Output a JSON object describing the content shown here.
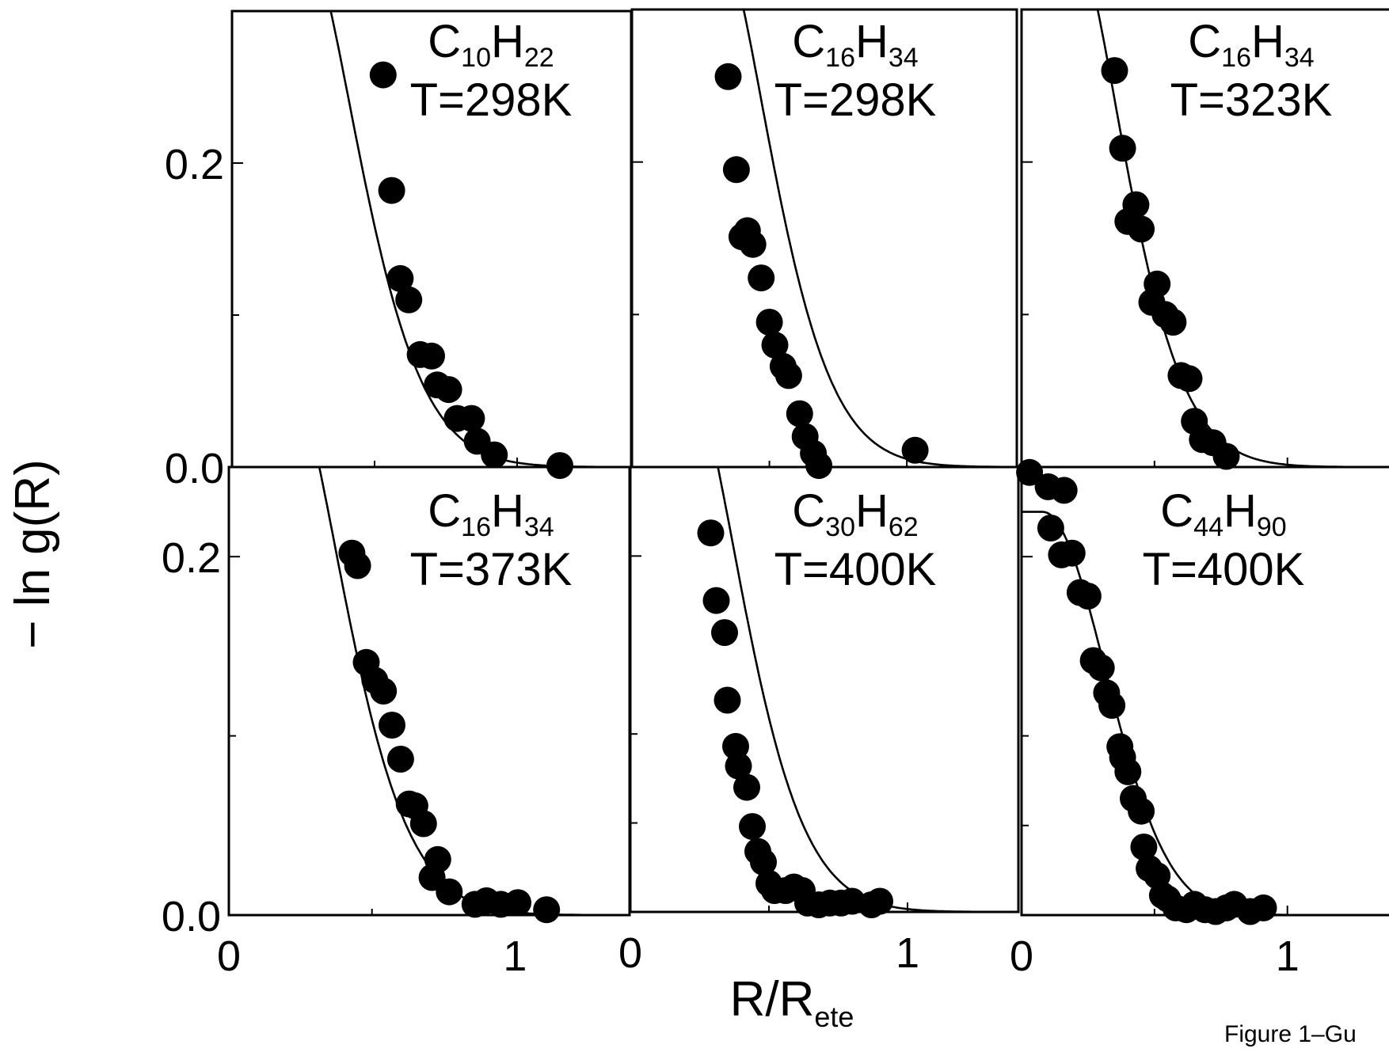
{
  "figure": {
    "ylabel": "− ln g(R)",
    "xlabel_main": "R/R",
    "xlabel_sub": "ete",
    "caption": "Figure 1–Gu"
  },
  "chart_data": [
    {
      "type": "scatter",
      "label": {
        "c": "C",
        "c_sub": "10",
        "h": "H",
        "h_sub": "22",
        "temp": "T=298K"
      },
      "xlim": [
        0,
        1.4
      ],
      "ylim": [
        0,
        0.3
      ],
      "yticks": [
        0.0,
        0.2
      ],
      "ytick_labels": [
        "0.0",
        "0.2"
      ],
      "y_minor": [
        0.1
      ],
      "xticks": [
        0,
        1
      ],
      "xtick_labels": [
        "",
        ""
      ],
      "x_minor": [
        0.5
      ],
      "curve": {
        "x0": 0.26,
        "k": 5.0
      },
      "points": [
        [
          0.53,
          0.258
        ],
        [
          0.56,
          0.182
        ],
        [
          0.59,
          0.124
        ],
        [
          0.62,
          0.11
        ],
        [
          0.66,
          0.074
        ],
        [
          0.7,
          0.073
        ],
        [
          0.72,
          0.054
        ],
        [
          0.76,
          0.051
        ],
        [
          0.79,
          0.032
        ],
        [
          0.84,
          0.032
        ],
        [
          0.86,
          0.017
        ],
        [
          0.92,
          0.008
        ],
        [
          1.15,
          0.001
        ]
      ]
    },
    {
      "type": "scatter",
      "label": {
        "c": "C",
        "c_sub": "16",
        "h": "H",
        "h_sub": "34",
        "temp": "T=298K"
      },
      "xlim": [
        0,
        1.4
      ],
      "ylim": [
        0,
        0.3
      ],
      "yticks": [
        0.2
      ],
      "ytick_labels": [
        ""
      ],
      "y_minor": [
        0.1
      ],
      "xticks": [
        0,
        1
      ],
      "xtick_labels": [
        "",
        ""
      ],
      "x_minor": [
        0.5
      ],
      "curve": {
        "x0": 0.32,
        "k": 5.0
      },
      "points": [
        [
          0.35,
          0.256
        ],
        [
          0.38,
          0.195
        ],
        [
          0.4,
          0.151
        ],
        [
          0.42,
          0.155
        ],
        [
          0.44,
          0.146
        ],
        [
          0.47,
          0.124
        ],
        [
          0.5,
          0.095
        ],
        [
          0.52,
          0.08
        ],
        [
          0.55,
          0.066
        ],
        [
          0.57,
          0.06
        ],
        [
          0.61,
          0.035
        ],
        [
          0.63,
          0.02
        ],
        [
          0.66,
          0.009
        ],
        [
          0.68,
          0.001
        ],
        [
          1.03,
          0.011
        ]
      ]
    },
    {
      "type": "scatter",
      "label": {
        "c": "C",
        "c_sub": "16",
        "h": "H",
        "h_sub": "34",
        "temp": "T=323K"
      },
      "xlim": [
        0,
        1.4
      ],
      "ylim": [
        0,
        0.3
      ],
      "yticks": [
        0.2
      ],
      "ytick_labels": [
        ""
      ],
      "y_minor": [
        0.1
      ],
      "xticks": [
        0,
        1
      ],
      "xtick_labels": [
        "",
        ""
      ],
      "x_minor": [
        0.5
      ],
      "curve": {
        "x0": 0.2,
        "k": 5.0
      },
      "points": [
        [
          0.35,
          0.26
        ],
        [
          0.38,
          0.209
        ],
        [
          0.4,
          0.161
        ],
        [
          0.43,
          0.172
        ],
        [
          0.45,
          0.156
        ],
        [
          0.49,
          0.108
        ],
        [
          0.51,
          0.12
        ],
        [
          0.54,
          0.1
        ],
        [
          0.57,
          0.095
        ],
        [
          0.6,
          0.06
        ],
        [
          0.63,
          0.058
        ],
        [
          0.65,
          0.03
        ],
        [
          0.68,
          0.018
        ],
        [
          0.72,
          0.016
        ],
        [
          0.77,
          0.007
        ]
      ]
    },
    {
      "type": "scatter",
      "label": {
        "c": "C",
        "c_sub": "16",
        "h": "H",
        "h_sub": "34",
        "temp": "T=373K"
      },
      "xlim": [
        0,
        1.4
      ],
      "ylim": [
        0,
        0.25
      ],
      "yticks": [
        0.0,
        0.2
      ],
      "ytick_labels": [
        "0.0",
        "0.2"
      ],
      "y_minor": [
        0.1
      ],
      "xticks": [
        0,
        1
      ],
      "xtick_labels": [
        "0",
        "1"
      ],
      "x_minor": [
        0.5
      ],
      "curve": {
        "x0": 0.22,
        "k": 5.0
      },
      "points": [
        [
          0.43,
          0.202
        ],
        [
          0.45,
          0.195
        ],
        [
          0.48,
          0.141
        ],
        [
          0.51,
          0.131
        ],
        [
          0.54,
          0.125
        ],
        [
          0.57,
          0.106
        ],
        [
          0.6,
          0.087
        ],
        [
          0.63,
          0.062
        ],
        [
          0.65,
          0.061
        ],
        [
          0.68,
          0.051
        ],
        [
          0.73,
          0.031
        ],
        [
          0.71,
          0.021
        ],
        [
          0.77,
          0.013
        ],
        [
          0.86,
          0.006
        ],
        [
          0.9,
          0.008
        ],
        [
          0.95,
          0.006
        ],
        [
          1.01,
          0.007
        ],
        [
          1.11,
          0.003
        ]
      ]
    },
    {
      "type": "scatter",
      "label": {
        "c": "C",
        "c_sub": "30",
        "h": "H",
        "h_sub": "62",
        "temp": "T=400K"
      },
      "xlim": [
        0,
        1.4
      ],
      "ylim": [
        0,
        0.25
      ],
      "yticks": [
        0.2
      ],
      "ytick_labels": [
        ""
      ],
      "y_minor": [
        0.1,
        0.05
      ],
      "xticks": [
        0,
        1
      ],
      "xtick_labels": [
        "0",
        "1"
      ],
      "x_minor": [
        0.5
      ],
      "curve": {
        "x0": 0.22,
        "k": 5.0
      },
      "points": [
        [
          0.29,
          0.213
        ],
        [
          0.31,
          0.175
        ],
        [
          0.34,
          0.157
        ],
        [
          0.35,
          0.119
        ],
        [
          0.38,
          0.093
        ],
        [
          0.39,
          0.082
        ],
        [
          0.42,
          0.07
        ],
        [
          0.44,
          0.048
        ],
        [
          0.46,
          0.034
        ],
        [
          0.48,
          0.028
        ],
        [
          0.5,
          0.016
        ],
        [
          0.52,
          0.012
        ],
        [
          0.56,
          0.012
        ],
        [
          0.59,
          0.014
        ],
        [
          0.62,
          0.012
        ],
        [
          0.64,
          0.005
        ],
        [
          0.68,
          0.004
        ],
        [
          0.72,
          0.005
        ],
        [
          0.76,
          0.005
        ],
        [
          0.8,
          0.006
        ],
        [
          0.87,
          0.004
        ],
        [
          0.9,
          0.006
        ]
      ]
    },
    {
      "type": "scatter",
      "label": {
        "c": "C",
        "c_sub": "44",
        "h": "H",
        "h_sub": "90",
        "temp": "T=400K"
      },
      "xlim": [
        0,
        1.4
      ],
      "ylim": [
        0,
        0.25
      ],
      "yticks": [
        0.2
      ],
      "ytick_labels": [
        ""
      ],
      "y_minor": [
        0.1,
        0.05
      ],
      "xticks": [
        0,
        1
      ],
      "xtick_labels": [
        "0",
        "1"
      ],
      "x_minor": [
        0.5
      ],
      "curve": {
        "x0": 0.0,
        "k": 5.0,
        "plateau": 0.225
      },
      "points": [
        [
          0.03,
          0.247
        ],
        [
          0.1,
          0.239
        ],
        [
          0.16,
          0.237
        ],
        [
          0.11,
          0.216
        ],
        [
          0.15,
          0.201
        ],
        [
          0.19,
          0.202
        ],
        [
          0.22,
          0.18
        ],
        [
          0.25,
          0.178
        ],
        [
          0.27,
          0.142
        ],
        [
          0.3,
          0.138
        ],
        [
          0.32,
          0.124
        ],
        [
          0.34,
          0.117
        ],
        [
          0.37,
          0.094
        ],
        [
          0.38,
          0.088
        ],
        [
          0.4,
          0.08
        ],
        [
          0.42,
          0.065
        ],
        [
          0.45,
          0.058
        ],
        [
          0.46,
          0.038
        ],
        [
          0.48,
          0.026
        ],
        [
          0.51,
          0.022
        ],
        [
          0.53,
          0.011
        ],
        [
          0.55,
          0.009
        ],
        [
          0.58,
          0.004
        ],
        [
          0.62,
          0.003
        ],
        [
          0.65,
          0.006
        ],
        [
          0.69,
          0.003
        ],
        [
          0.73,
          0.002
        ],
        [
          0.77,
          0.004
        ],
        [
          0.8,
          0.006
        ],
        [
          0.86,
          0.002
        ],
        [
          0.91,
          0.004
        ]
      ]
    }
  ]
}
